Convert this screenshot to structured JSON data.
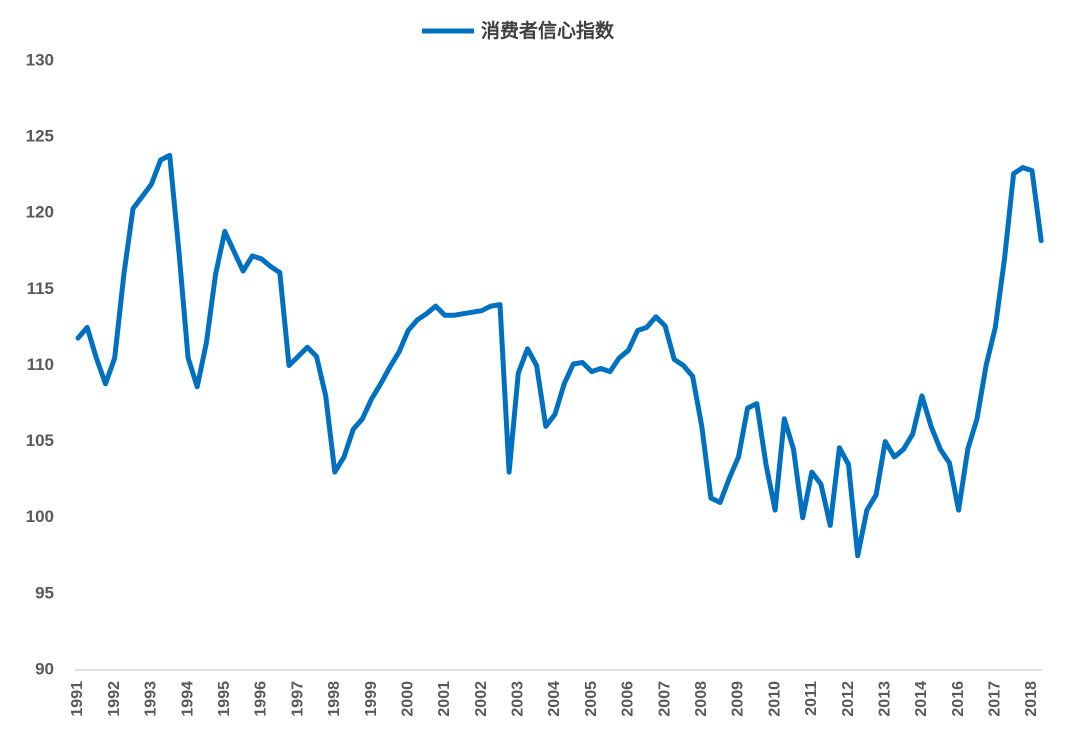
{
  "chart_data": {
    "type": "line",
    "categories": [
      "1991",
      null,
      null,
      null,
      "1992",
      null,
      null,
      null,
      "1993",
      null,
      null,
      null,
      "1994",
      null,
      null,
      null,
      "1995",
      null,
      null,
      null,
      "1996",
      null,
      null,
      null,
      "1997",
      null,
      null,
      null,
      "1998",
      null,
      null,
      null,
      "1999",
      null,
      null,
      null,
      "2000",
      null,
      null,
      null,
      "2001",
      null,
      null,
      null,
      "2002",
      null,
      null,
      null,
      "2003",
      null,
      null,
      null,
      "2004",
      null,
      null,
      null,
      "2005",
      null,
      null,
      null,
      "2006",
      null,
      null,
      null,
      "2007",
      null,
      null,
      null,
      "2008",
      null,
      null,
      null,
      "2009",
      null,
      null,
      null,
      "2010",
      null,
      null,
      null,
      "2011",
      null,
      null,
      null,
      "2012",
      null,
      null,
      null,
      "2013",
      null,
      null,
      null,
      "2014",
      null,
      null,
      null,
      "2016",
      null,
      null,
      null,
      "2017",
      null,
      null,
      null,
      "2018",
      null
    ],
    "series": [
      {
        "name": "消费者信心指数",
        "color": "#0070c0",
        "values": [
          111.8,
          112.5,
          110.5,
          108.8,
          110.5,
          116,
          120.3,
          121.1,
          121.9,
          123.5,
          123.8,
          117.5,
          110.5,
          108.6,
          111.5,
          116,
          118.8,
          117.5,
          116.2,
          117.2,
          117,
          116.5,
          116.1,
          110,
          110.6,
          111.2,
          110.6,
          108,
          103,
          104,
          105.8,
          106.5,
          107.8,
          108.8,
          109.9,
          110.9,
          112.3,
          113,
          113.4,
          113.9,
          113.3,
          113.3,
          113.4,
          113.5,
          113.6,
          113.9,
          114,
          103,
          109.5,
          111.1,
          110,
          106,
          106.8,
          108.8,
          110.1,
          110.2,
          109.6,
          109.8,
          109.6,
          110.5,
          111,
          112.3,
          112.5,
          113.2,
          112.6,
          110.4,
          110,
          109.3,
          106,
          101.3,
          101,
          102.6,
          104,
          107.2,
          107.5,
          103.5,
          100.5,
          106.5,
          104.5,
          100,
          103,
          102.2,
          99.5,
          104.6,
          103.5,
          97.5,
          100.5,
          101.5,
          105,
          104,
          104.5,
          105.5,
          108,
          106,
          104.5,
          103.6,
          100.5,
          104.5,
          106.5,
          110,
          112.5,
          117,
          122.6,
          123,
          122.8,
          118.2
        ]
      }
    ],
    "ylim": [
      90,
      130
    ],
    "yticks": [
      90,
      95,
      100,
      105,
      110,
      115,
      120,
      125,
      130
    ],
    "grid": false,
    "legend": "top"
  }
}
